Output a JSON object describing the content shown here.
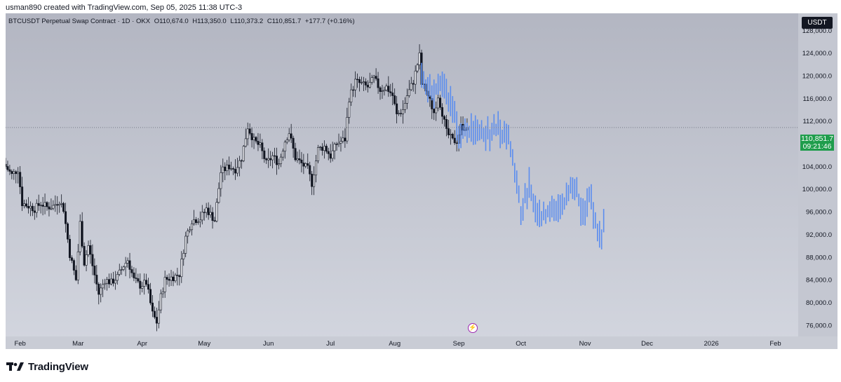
{
  "header": {
    "credit": "usman890 created with TradingView.com, Sep 05, 2025 11:38 UTC-3"
  },
  "legend": {
    "symbol": "BTCUSDT Perpetual Swap Contract · 1D · OKX",
    "open": "O110,674.0",
    "high": "H113,350.0",
    "low": "L110,373.2",
    "close": "C110,851.7",
    "change": "+177.7 (+0.16%)"
  },
  "price_scale": {
    "unit": "USDT",
    "last_price": "110,851.7",
    "countdown": "09:21:46"
  },
  "footer": {
    "brand": "TradingView"
  },
  "colors": {
    "up": "#131722",
    "down": "#131722",
    "projection": "#5b8def",
    "last_price_badge": "#1f9d4c",
    "event_icon": "#9c27b0"
  },
  "icons": {
    "event_marker": "lightning-icon",
    "brand_logo": "tradingview-logo-icon"
  },
  "chart_data": {
    "type": "candlestick",
    "y_range": [
      74000,
      131000
    ],
    "y_ticks": [
      76000,
      80000,
      84000,
      88000,
      92000,
      96000,
      100000,
      104000,
      108000,
      112000,
      116000,
      120000,
      124000,
      128000
    ],
    "y_tick_labels": [
      "76,000.0",
      "80,000.0",
      "84,000.0",
      "88,000.0",
      "92,000.0",
      "96,000.0",
      "100,000.0",
      "104,000.0",
      "108,000.0",
      "112,000.0",
      "116,000.0",
      "120,000.0",
      "124,000.0",
      "128,000.0"
    ],
    "x_labels": [
      "Feb",
      "Mar",
      "Apr",
      "May",
      "Jun",
      "Jul",
      "Aug",
      "Sep",
      "Oct",
      "Nov",
      "Dec",
      "2026",
      "Feb"
    ],
    "x_label_dates": [
      "2025-02-01",
      "2025-03-01",
      "2025-04-01",
      "2025-05-01",
      "2025-06-01",
      "2025-07-01",
      "2025-08-01",
      "2025-09-01",
      "2025-10-01",
      "2025-11-01",
      "2025-12-01",
      "2026-01-01",
      "2026-02-01"
    ],
    "x_range": [
      "2025-01-25",
      "2026-02-12"
    ],
    "last_price": 110851.7,
    "grid": false,
    "price_series": {
      "name": "",
      "points": [
        [
          "2025-01-25",
          104000
        ],
        [
          "2025-01-28",
          102500
        ],
        [
          "2025-01-31",
          103500
        ],
        [
          "2025-02-02",
          97500
        ],
        [
          "2025-02-05",
          97000
        ],
        [
          "2025-02-08",
          96500
        ],
        [
          "2025-02-11",
          97500
        ],
        [
          "2025-02-14",
          96800
        ],
        [
          "2025-02-17",
          97000
        ],
        [
          "2025-02-20",
          98000
        ],
        [
          "2025-02-22",
          96500
        ],
        [
          "2025-02-25",
          88500
        ],
        [
          "2025-02-28",
          84000
        ],
        [
          "2025-03-02",
          94000
        ],
        [
          "2025-03-04",
          87000
        ],
        [
          "2025-03-06",
          90000
        ],
        [
          "2025-03-08",
          86500
        ],
        [
          "2025-03-11",
          81500
        ],
        [
          "2025-03-14",
          84000
        ],
        [
          "2025-03-17",
          83500
        ],
        [
          "2025-03-20",
          84500
        ],
        [
          "2025-03-23",
          86500
        ],
        [
          "2025-03-25",
          87500
        ],
        [
          "2025-03-28",
          84000
        ],
        [
          "2025-03-31",
          83000
        ],
        [
          "2025-04-03",
          83500
        ],
        [
          "2025-04-06",
          78000
        ],
        [
          "2025-04-08",
          76500
        ],
        [
          "2025-04-10",
          81000
        ],
        [
          "2025-04-12",
          84000
        ],
        [
          "2025-04-16",
          84500
        ],
        [
          "2025-04-19",
          85000
        ],
        [
          "2025-04-22",
          91500
        ],
        [
          "2025-04-25",
          94500
        ],
        [
          "2025-04-29",
          94800
        ],
        [
          "2025-05-02",
          96500
        ],
        [
          "2025-05-06",
          94500
        ],
        [
          "2025-05-09",
          103000
        ],
        [
          "2025-05-13",
          104000
        ],
        [
          "2025-05-16",
          103500
        ],
        [
          "2025-05-19",
          105500
        ],
        [
          "2025-05-22",
          111000
        ],
        [
          "2025-05-25",
          108500
        ],
        [
          "2025-05-28",
          107500
        ],
        [
          "2025-05-31",
          104500
        ],
        [
          "2025-06-03",
          105800
        ],
        [
          "2025-06-06",
          104500
        ],
        [
          "2025-06-09",
          108500
        ],
        [
          "2025-06-11",
          110000
        ],
        [
          "2025-06-14",
          105500
        ],
        [
          "2025-06-17",
          104500
        ],
        [
          "2025-06-20",
          103500
        ],
        [
          "2025-06-22",
          101000
        ],
        [
          "2025-06-25",
          107000
        ],
        [
          "2025-06-28",
          107500
        ],
        [
          "2025-07-01",
          105800
        ],
        [
          "2025-07-04",
          108000
        ],
        [
          "2025-07-08",
          108800
        ],
        [
          "2025-07-10",
          116000
        ],
        [
          "2025-07-13",
          119000
        ],
        [
          "2025-07-16",
          118500
        ],
        [
          "2025-07-19",
          118000
        ],
        [
          "2025-07-22",
          119500
        ],
        [
          "2025-07-25",
          117500
        ],
        [
          "2025-07-28",
          118000
        ],
        [
          "2025-07-31",
          116500
        ],
        [
          "2025-08-02",
          113000
        ],
        [
          "2025-08-05",
          114000
        ],
        [
          "2025-08-07",
          116500
        ],
        [
          "2025-08-10",
          119000
        ],
        [
          "2025-08-13",
          123500
        ],
        [
          "2025-08-14",
          118500
        ],
        [
          "2025-08-16",
          117500
        ],
        [
          "2025-08-18",
          115500
        ],
        [
          "2025-08-20",
          113500
        ],
        [
          "2025-08-22",
          116500
        ],
        [
          "2025-08-24",
          113500
        ],
        [
          "2025-08-26",
          110000
        ],
        [
          "2025-08-29",
          108500
        ],
        [
          "2025-08-31",
          108500
        ],
        [
          "2025-09-02",
          111000
        ],
        [
          "2025-09-05",
          110851.7
        ]
      ]
    },
    "projection_series": {
      "name": "",
      "points": [
        [
          "2025-08-14",
          119500
        ],
        [
          "2025-08-17",
          118000
        ],
        [
          "2025-08-20",
          117500
        ],
        [
          "2025-08-23",
          119000
        ],
        [
          "2025-08-26",
          117000
        ],
        [
          "2025-08-29",
          115000
        ],
        [
          "2025-09-01",
          109500
        ],
        [
          "2025-09-04",
          110500
        ],
        [
          "2025-09-07",
          110000
        ],
        [
          "2025-09-10",
          109800
        ],
        [
          "2025-09-13",
          110500
        ],
        [
          "2025-09-16",
          110000
        ],
        [
          "2025-09-19",
          110800
        ],
        [
          "2025-09-22",
          109500
        ],
        [
          "2025-09-25",
          109000
        ],
        [
          "2025-09-27",
          106000
        ],
        [
          "2025-09-29",
          100500
        ],
        [
          "2025-10-01",
          96500
        ],
        [
          "2025-10-03",
          98000
        ],
        [
          "2025-10-05",
          101000
        ],
        [
          "2025-10-07",
          97000
        ],
        [
          "2025-10-09",
          96000
        ],
        [
          "2025-10-11",
          95500
        ],
        [
          "2025-10-13",
          95000
        ],
        [
          "2025-10-15",
          96500
        ],
        [
          "2025-10-17",
          97500
        ],
        [
          "2025-10-19",
          96000
        ],
        [
          "2025-10-21",
          97000
        ],
        [
          "2025-10-23",
          98000
        ],
        [
          "2025-10-26",
          100500
        ],
        [
          "2025-10-28",
          99500
        ],
        [
          "2025-10-30",
          97000
        ],
        [
          "2025-11-01",
          96500
        ],
        [
          "2025-11-03",
          98500
        ],
        [
          "2025-11-05",
          96500
        ],
        [
          "2025-11-07",
          93500
        ],
        [
          "2025-11-09",
          90500
        ],
        [
          "2025-11-10",
          94500
        ]
      ]
    }
  }
}
